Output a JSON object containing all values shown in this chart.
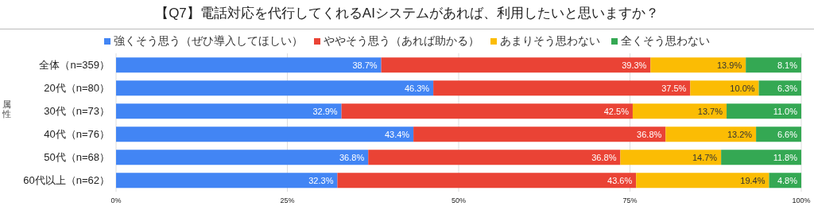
{
  "chart_data": {
    "type": "bar",
    "orientation": "horizontal",
    "stacked": true,
    "title": "【Q7】電話対応を代行してくれるAIシステムがあれば、利用したいと思いますか？",
    "ylabel": "属性",
    "categories": [
      "全体（n=359）",
      "20代（n=80）",
      "30代（n=73）",
      "40代（n=76）",
      "50代（n=68）",
      "60代以上（n=62）"
    ],
    "series": [
      {
        "name": "強くそう思う（ぜひ導入してほしい）",
        "color": "#4285f4",
        "values": [
          38.7,
          46.3,
          32.9,
          43.4,
          36.8,
          32.3
        ],
        "value_labels": [
          "38.7%",
          "46.3%",
          "32.9%",
          "43.4%",
          "36.8%",
          "32.3%"
        ]
      },
      {
        "name": "ややそう思う（あれば助かる）",
        "color": "#ea4335",
        "values": [
          39.3,
          37.5,
          42.5,
          36.8,
          36.8,
          43.6
        ],
        "value_labels": [
          "39.3%",
          "37.5%",
          "42.5%",
          "36.8%",
          "36.8%",
          "43.6%"
        ]
      },
      {
        "name": "あまりそう思わない",
        "color": "#fbbc04",
        "values": [
          13.9,
          10.0,
          13.7,
          13.2,
          14.7,
          19.4
        ],
        "value_labels": [
          "13.9%",
          "10.0%",
          "13.7%",
          "13.2%",
          "14.7%",
          "19.4%"
        ]
      },
      {
        "name": "全くそう思わない",
        "color": "#34a853",
        "values": [
          8.1,
          6.3,
          11.0,
          6.6,
          11.8,
          4.8
        ],
        "value_labels": [
          "8.1%",
          "6.3%",
          "11.0%",
          "6.6%",
          "11.8%",
          "4.8%"
        ]
      }
    ],
    "xlim": [
      0,
      100
    ],
    "xticks": [
      {
        "value": 0,
        "label": "0%"
      },
      {
        "value": 25,
        "label": "25%"
      },
      {
        "value": 50,
        "label": "50%"
      },
      {
        "value": 75,
        "label": "75%"
      },
      {
        "value": 100,
        "label": "100%"
      }
    ],
    "grid": "x",
    "legend": "top"
  }
}
